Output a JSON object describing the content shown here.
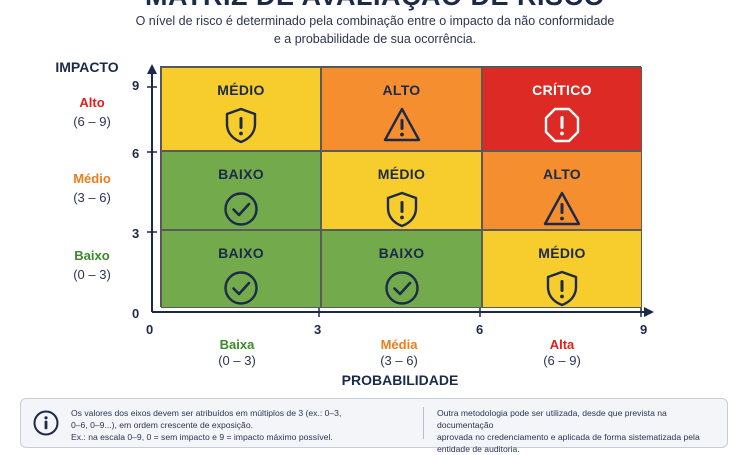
{
  "title": "MATRIZ DE AVALIAÇÃO DE RISCO",
  "subtitle": [
    "O nível de risco é determinado pela combinação entre o impacto da não conformidade",
    "e a probabilidade de sua ocorrência."
  ],
  "y_axis": {
    "title": "IMPACTO",
    "ticks": [
      "0",
      "3",
      "6",
      "9"
    ],
    "levels": [
      {
        "name": "Alto",
        "range": "(6 – 9)",
        "color": "#e0201a"
      },
      {
        "name": "Médio",
        "range": "(3 – 6)",
        "color": "#ef7d1a"
      },
      {
        "name": "Baixo",
        "range": "(0 – 3)",
        "color": "#3d8a2a"
      }
    ]
  },
  "x_axis": {
    "title": "PROBABILIDADE",
    "ticks": [
      "0",
      "3",
      "6",
      "9"
    ],
    "levels": [
      {
        "name": "Baixa",
        "range": "(0 – 3)",
        "color": "#3d8a2a"
      },
      {
        "name": "Média",
        "range": "(3 – 6)",
        "color": "#ef7d1a"
      },
      {
        "name": "Alta",
        "range": "(6 – 9)",
        "color": "#e0201a"
      }
    ]
  },
  "matrix": [
    [
      {
        "label": "MÉDIO",
        "icon": "shield-warning-icon",
        "color": "#f6cd2c",
        "kind": "medio"
      },
      {
        "label": "ALTO",
        "icon": "triangle-warning-icon",
        "color": "#f58e2e",
        "kind": "alto"
      },
      {
        "label": "CRÍTICO",
        "icon": "octagon-warning-icon",
        "color": "#dd2a24",
        "kind": "critico"
      }
    ],
    [
      {
        "label": "BAIXO",
        "icon": "check-circle-icon",
        "color": "#73ab4c",
        "kind": "baixo"
      },
      {
        "label": "MÉDIO",
        "icon": "shield-warning-icon",
        "color": "#f6cd2c",
        "kind": "medio"
      },
      {
        "label": "ALTO",
        "icon": "triangle-warning-icon",
        "color": "#f58e2e",
        "kind": "alto"
      }
    ],
    [
      {
        "label": "BAIXO",
        "icon": "check-circle-icon",
        "color": "#73ab4c",
        "kind": "baixo"
      },
      {
        "label": "BAIXO",
        "icon": "check-circle-icon",
        "color": "#73ab4c",
        "kind": "baixo"
      },
      {
        "label": "MÉDIO",
        "icon": "shield-warning-icon",
        "color": "#f6cd2c",
        "kind": "medio"
      }
    ]
  ],
  "note": {
    "icon": "info-icon",
    "left": [
      "Os valores dos eixos devem ser atribuídos em múltiplos de 3 (ex.: 0–3,",
      "0–6, 0–9...), em ordem crescente de exposição.",
      "Ex.: na escala 0–9, 0 = sem impacto e 9 = impacto máximo possível."
    ],
    "right": [
      "Outra metodologia pode ser utilizada, desde que prevista na documentação",
      "aprovada no credenciamento e aplicada de forma sistematizada pela",
      "entidade de auditoria."
    ]
  }
}
